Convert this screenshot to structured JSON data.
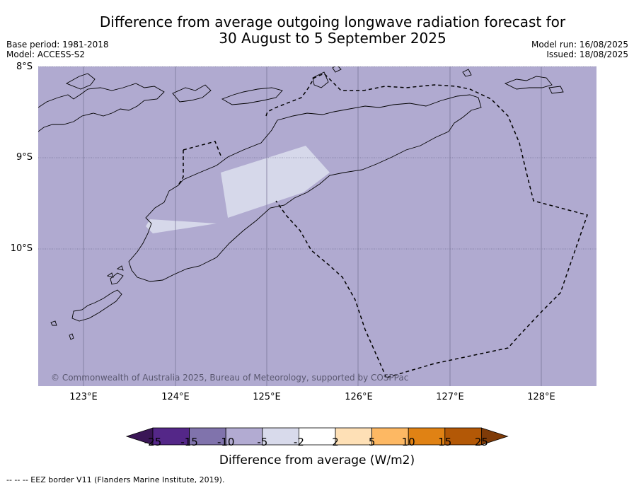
{
  "title_line1": "Difference from average outgoing longwave radiation forecast for",
  "title_line2": "30 August to 5 September 2025",
  "base_period": "Base period: 1981-2018",
  "model": "Model: ACCESS-S2",
  "model_run": "Model run: 16/08/2025",
  "issued": "Issued: 18/08/2025",
  "latitudes": [
    "8°S",
    "9°S",
    "10°S"
  ],
  "longitudes": [
    "123°E",
    "124°E",
    "125°E",
    "126°E",
    "127°E",
    "128°E"
  ],
  "copyright": "© Commonwealth of Australia 2025, Bureau of Meteorology, supported by COSPPac",
  "legend": {
    "title": "Difference from average (W/m2)",
    "ticks": [
      "-25",
      "-15",
      "-10",
      "-5",
      "-2",
      "2",
      "5",
      "10",
      "15",
      "25"
    ],
    "colors": [
      "#3a1656",
      "#542788",
      "#8073ac",
      "#b2abd2",
      "#d8daeb",
      "#ffffff",
      "#fee0b6",
      "#fdb863",
      "#e08214",
      "#b35806",
      "#7f3b08"
    ]
  },
  "footnote": "--  --  -- EEZ border V11 (Flanders Marine Institute, 2019).",
  "colors": {
    "map_background": "#b0aad0",
    "light_anomaly": "#d8daeb"
  }
}
